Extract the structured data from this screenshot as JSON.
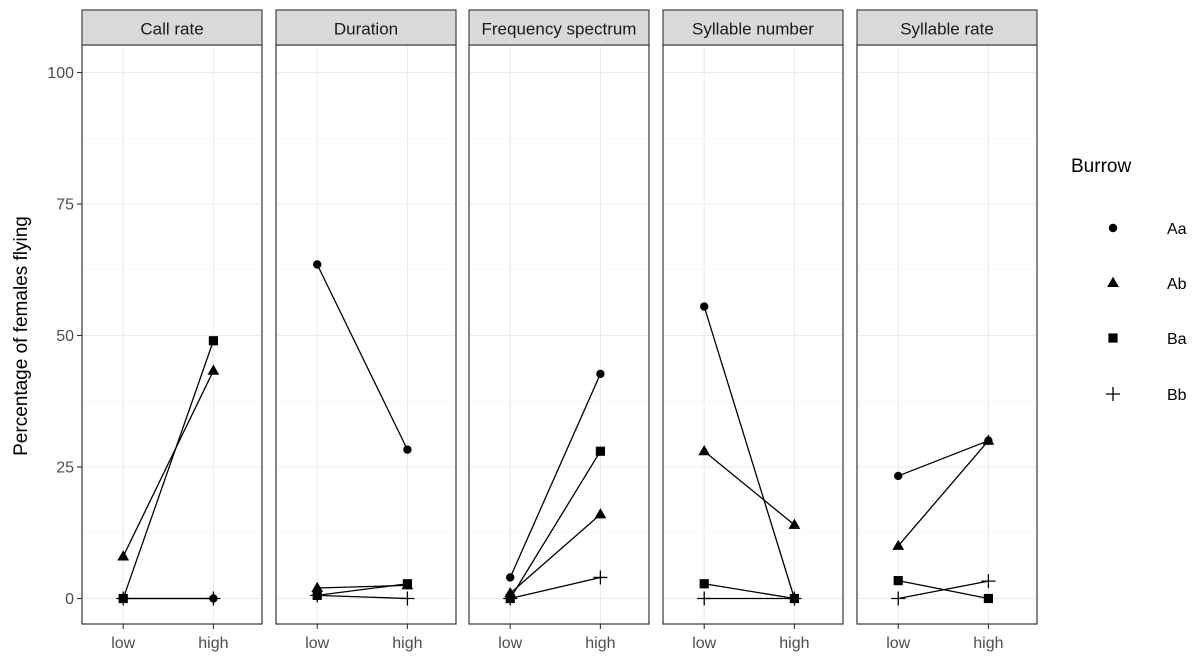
{
  "chart_data": {
    "type": "line",
    "facet_by": "Cue",
    "panels": [
      "Call rate",
      "Duration",
      "Frequency spectrum",
      "Syllable number",
      "Syllable rate"
    ],
    "x_categories": [
      "low",
      "high"
    ],
    "xlabel": "",
    "ylabel": "Percentage of females flying",
    "ylim": [
      -5,
      105
    ],
    "yticks": [
      0,
      25,
      50,
      75,
      100
    ],
    "grid": true,
    "legend": {
      "title": "Burrow",
      "position": "right"
    },
    "series": [
      {
        "name": "Aa",
        "shape": "circle",
        "values": {
          "Call rate": [
            0,
            0
          ],
          "Duration": [
            63.5,
            28.3
          ],
          "Frequency spectrum": [
            4,
            42.7
          ],
          "Syllable number": [
            55.5,
            0
          ],
          "Syllable rate": [
            23.3,
            30
          ]
        }
      },
      {
        "name": "Ab",
        "shape": "triangle",
        "values": {
          "Call rate": [
            8,
            43.3
          ],
          "Duration": [
            2,
            2.5
          ],
          "Frequency spectrum": [
            1,
            16
          ],
          "Syllable number": [
            28,
            14
          ],
          "Syllable rate": [
            10,
            30
          ]
        }
      },
      {
        "name": "Ba",
        "shape": "square",
        "values": {
          "Call rate": [
            0,
            49
          ],
          "Duration": [
            0.6,
            2.8
          ],
          "Frequency spectrum": [
            0,
            28
          ],
          "Syllable number": [
            2.8,
            0
          ],
          "Syllable rate": [
            3.4,
            0
          ]
        }
      },
      {
        "name": "Bb",
        "shape": "plus",
        "values": {
          "Call rate": [
            0,
            0
          ],
          "Duration": [
            0.6,
            0
          ],
          "Frequency spectrum": [
            0,
            4
          ],
          "Syllable number": [
            0,
            0
          ],
          "Syllable rate": [
            0,
            3.3
          ]
        }
      }
    ]
  }
}
